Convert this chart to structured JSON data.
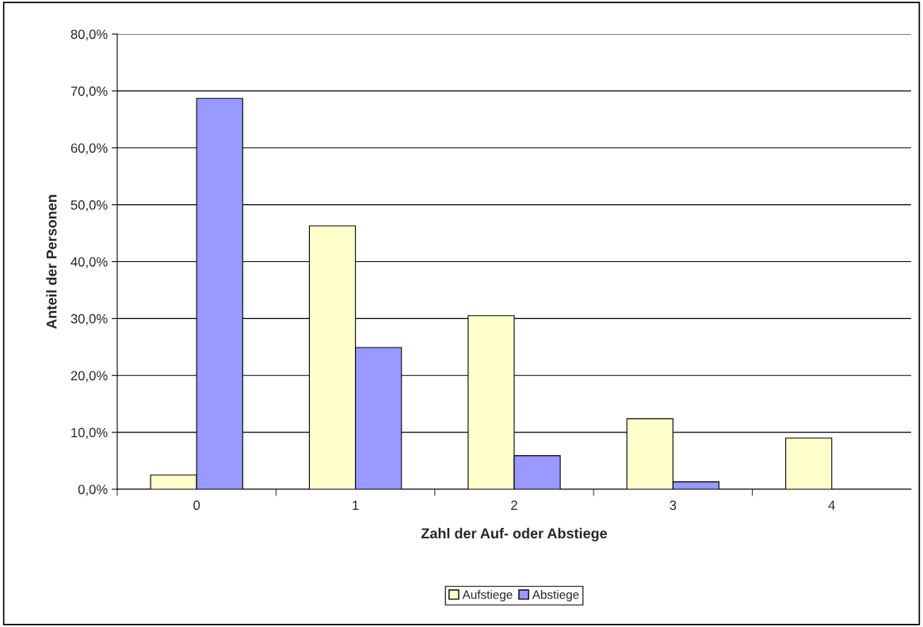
{
  "chart_data": {
    "type": "bar",
    "xlabel": "Zahl der Auf- oder Abstiege",
    "ylabel": "Anteil der Personen",
    "categories": [
      "0",
      "1",
      "2",
      "3",
      "4"
    ],
    "series": [
      {
        "name": "Aufstiege",
        "color": "#ffffcc",
        "values": [
          2.5,
          46.3,
          30.5,
          12.4,
          9.0
        ]
      },
      {
        "name": "Abstiege",
        "color": "#9999ff",
        "values": [
          68.7,
          24.9,
          5.9,
          1.3,
          null
        ]
      }
    ],
    "ylim": [
      0,
      80
    ],
    "yticks": [
      {
        "value": 0,
        "label": "0,0%"
      },
      {
        "value": 10,
        "label": "10,0%"
      },
      {
        "value": 20,
        "label": "20,0%"
      },
      {
        "value": 30,
        "label": "30,0%"
      },
      {
        "value": 40,
        "label": "40,0%"
      },
      {
        "value": 50,
        "label": "50,0%"
      },
      {
        "value": 60,
        "label": "60,0%"
      },
      {
        "value": 70,
        "label": "70,0%"
      },
      {
        "value": 80,
        "label": "80,0%"
      }
    ],
    "grid": "y",
    "legend": "bottom"
  }
}
